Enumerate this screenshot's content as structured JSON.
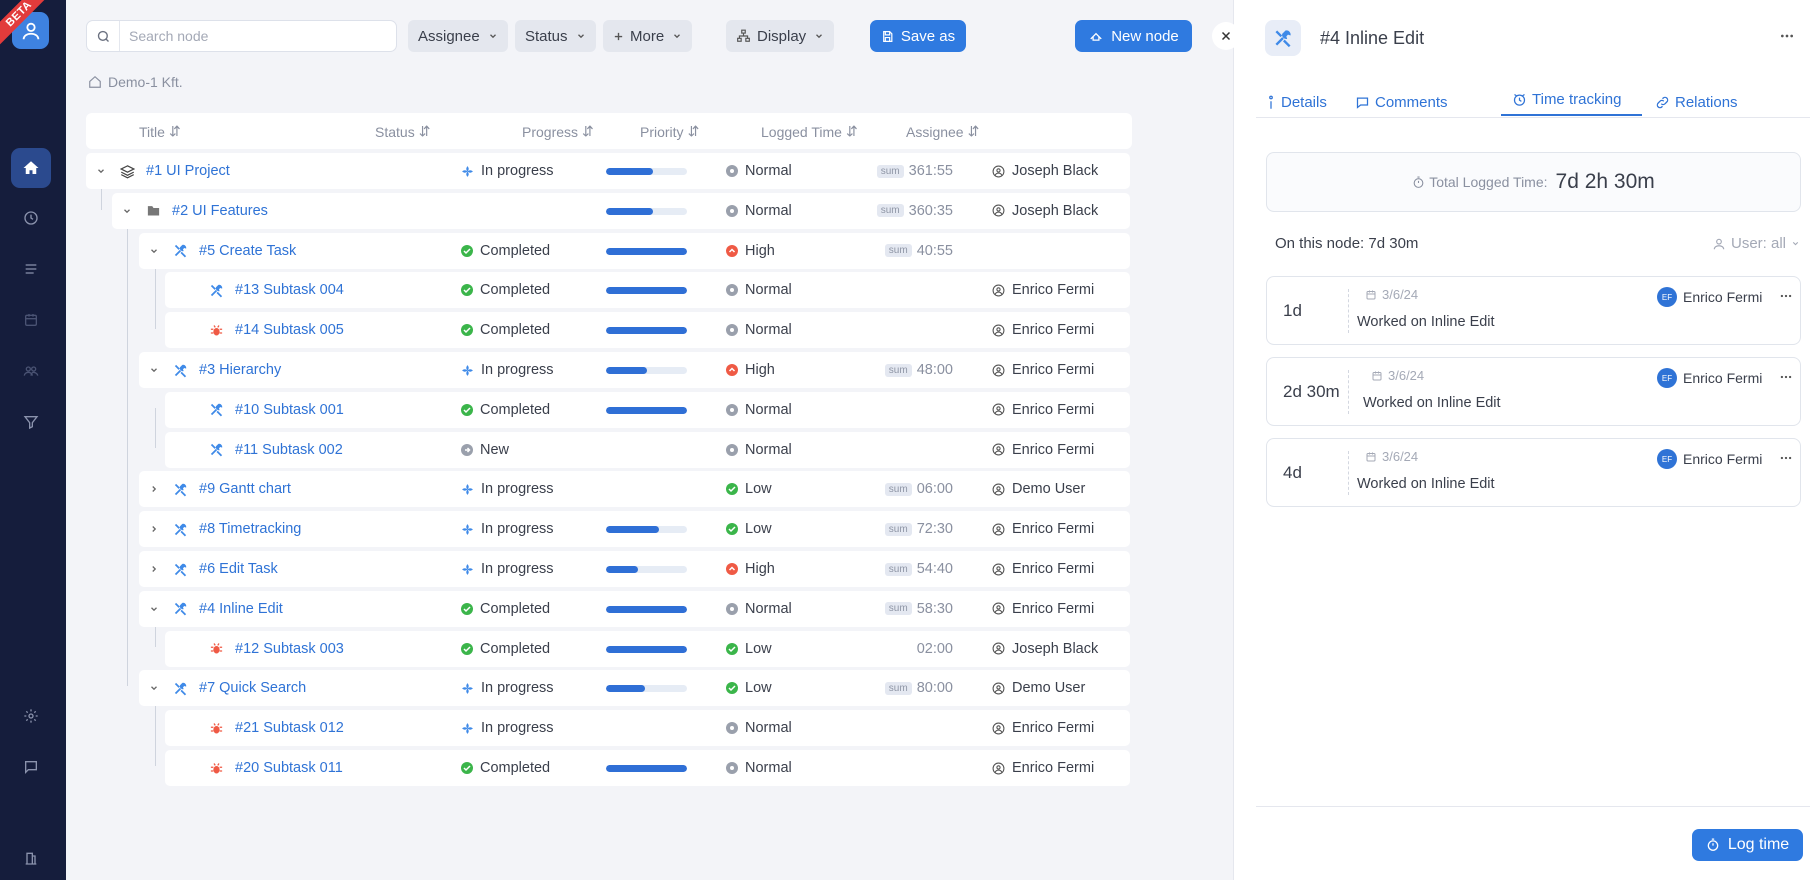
{
  "nav": {
    "beta": "BETA"
  },
  "toolbar": {
    "search_placeholder": "Search node",
    "assignee": "Assignee",
    "status": "Status",
    "more": "More",
    "display": "Display",
    "save_as": "Save as",
    "new_node": "New node"
  },
  "breadcrumb": "Demo-1 Kft.",
  "columns": {
    "title": "Title",
    "status": "Status",
    "progress": "Progress",
    "priority": "Priority",
    "logged": "Logged Time",
    "assignee": "Assignee"
  },
  "colors": {
    "accent": "#2f7ae0",
    "completed": "#3bb54a",
    "high": "#ef5a45",
    "normal": "#9aa0ac",
    "bug": "#ef5a45",
    "feature": "#3f8ae8"
  },
  "rows": [
    {
      "title": "#1 UI Project",
      "status": "In progress",
      "progress": 0.58,
      "priority": "Normal",
      "sum": "sum",
      "logged": "361:55",
      "assignee": "Joseph Black",
      "icon": "layers-icon",
      "level": 0,
      "toggle": "down"
    },
    {
      "title": "#2 UI Features",
      "status": "",
      "progress": 0.58,
      "priority": "Normal",
      "sum": "sum",
      "logged": "360:35",
      "assignee": "Joseph Black",
      "icon": "folder-icon",
      "level": 1,
      "toggle": "down"
    },
    {
      "title": "#5 Create Task",
      "status": "Completed",
      "progress": 1.0,
      "priority": "High",
      "sum": "sum",
      "logged": "40:55",
      "assignee": "",
      "icon": "tools-icon",
      "level": 2,
      "toggle": "down"
    },
    {
      "title": "#13 Subtask 004",
      "status": "Completed",
      "progress": 1.0,
      "priority": "Normal",
      "sum": "",
      "logged": "",
      "assignee": "Enrico Fermi",
      "icon": "tools-icon",
      "level": 3,
      "toggle": ""
    },
    {
      "title": "#14 Subtask 005",
      "status": "Completed",
      "progress": 1.0,
      "priority": "Normal",
      "sum": "",
      "logged": "",
      "assignee": "Enrico Fermi",
      "icon": "bug-icon",
      "level": 3,
      "toggle": ""
    },
    {
      "title": "#3 Hierarchy",
      "status": "In progress",
      "progress": 0.5,
      "priority": "High",
      "sum": "sum",
      "logged": "48:00",
      "assignee": "Enrico Fermi",
      "icon": "tools-icon",
      "level": 2,
      "toggle": "down"
    },
    {
      "title": "#10 Subtask 001",
      "status": "Completed",
      "progress": 1.0,
      "priority": "Normal",
      "sum": "",
      "logged": "",
      "assignee": "Enrico Fermi",
      "icon": "tools-icon",
      "level": 3,
      "toggle": ""
    },
    {
      "title": "#11 Subtask 002",
      "status": "New",
      "progress": null,
      "priority": "Normal",
      "sum": "",
      "logged": "",
      "assignee": "Enrico Fermi",
      "icon": "tools-icon",
      "level": 3,
      "toggle": ""
    },
    {
      "title": "#9 Gantt chart",
      "status": "In progress",
      "progress": null,
      "priority": "Low",
      "sum": "sum",
      "logged": "06:00",
      "assignee": "Demo User",
      "icon": "tools-icon",
      "level": 2,
      "toggle": "right"
    },
    {
      "title": "#8 Timetracking",
      "status": "In progress",
      "progress": 0.65,
      "priority": "Low",
      "sum": "sum",
      "logged": "72:30",
      "assignee": "Enrico Fermi",
      "icon": "tools-icon",
      "level": 2,
      "toggle": "right"
    },
    {
      "title": "#6 Edit Task",
      "status": "In progress",
      "progress": 0.4,
      "priority": "High",
      "sum": "sum",
      "logged": "54:40",
      "assignee": "Enrico Fermi",
      "icon": "tools-icon",
      "level": 2,
      "toggle": "right"
    },
    {
      "title": "#4 Inline Edit",
      "status": "Completed",
      "progress": 1.0,
      "priority": "Normal",
      "sum": "sum",
      "logged": "58:30",
      "assignee": "Enrico Fermi",
      "icon": "tools-icon",
      "level": 2,
      "toggle": "down"
    },
    {
      "title": "#12 Subtask 003",
      "status": "Completed",
      "progress": 1.0,
      "priority": "Low",
      "sum": "",
      "logged": "02:00",
      "assignee": "Joseph Black",
      "icon": "bug-icon",
      "level": 3,
      "toggle": ""
    },
    {
      "title": "#7 Quick Search",
      "status": "In progress",
      "progress": 0.48,
      "priority": "Low",
      "sum": "sum",
      "logged": "80:00",
      "assignee": "Demo User",
      "icon": "tools-icon",
      "level": 2,
      "toggle": "down"
    },
    {
      "title": "#21 Subtask 012",
      "status": "In progress",
      "progress": null,
      "priority": "Normal",
      "sum": "",
      "logged": "",
      "assignee": "Enrico Fermi",
      "icon": "bug-icon",
      "level": 3,
      "toggle": ""
    },
    {
      "title": "#20 Subtask 011",
      "status": "Completed",
      "progress": 1.0,
      "priority": "Normal",
      "sum": "",
      "logged": "",
      "assignee": "Enrico Fermi",
      "icon": "bug-icon",
      "level": 3,
      "toggle": ""
    }
  ],
  "panel": {
    "title": "#4 Inline Edit",
    "tabs": [
      "Details",
      "Comments",
      "Time tracking",
      "Relations"
    ],
    "total_label": "Total Logged Time:",
    "total_value": "7d 2h 30m",
    "on_node": "On this node: 7d 30m",
    "user_filter": "User: all",
    "entries": [
      {
        "duration": "1d",
        "date": "3/6/24",
        "desc": "Worked on Inline Edit",
        "user": "Enrico Fermi",
        "initials": "EF"
      },
      {
        "duration": "2d 30m",
        "date": "3/6/24",
        "desc": "Worked on Inline Edit",
        "user": "Enrico Fermi",
        "initials": "EF"
      },
      {
        "duration": "4d",
        "date": "3/6/24",
        "desc": "Worked on Inline Edit",
        "user": "Enrico Fermi",
        "initials": "EF"
      }
    ],
    "log_time": "Log time"
  }
}
